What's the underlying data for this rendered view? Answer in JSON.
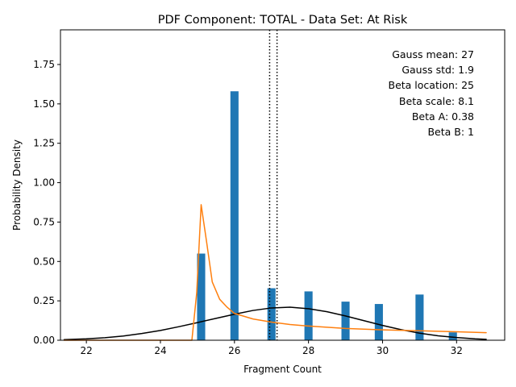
{
  "chart_data": {
    "type": "bar",
    "title": "PDF Component: TOTAL - Data Set: At Risk",
    "xlabel": "Fragment Count",
    "ylabel": "Probability Density",
    "xlim": [
      21.3,
      33.3
    ],
    "ylim": [
      0,
      1.97
    ],
    "xticks": [
      22,
      24,
      26,
      28,
      30,
      32
    ],
    "yticks": [
      0.0,
      0.25,
      0.5,
      0.75,
      1.0,
      1.25,
      1.5,
      1.75
    ],
    "xtick_labels": [
      "22",
      "24",
      "26",
      "28",
      "30",
      "32"
    ],
    "ytick_labels": [
      "0.00",
      "0.25",
      "0.50",
      "0.75",
      "1.00",
      "1.25",
      "1.50",
      "1.75"
    ],
    "grid": false,
    "bar_color": "#1f77b4",
    "bar_width": 0.22,
    "bars": [
      {
        "x": 25.1,
        "y": 0.55
      },
      {
        "x": 26.0,
        "y": 1.58
      },
      {
        "x": 27.0,
        "y": 0.33
      },
      {
        "x": 28.0,
        "y": 0.31
      },
      {
        "x": 29.0,
        "y": 0.245
      },
      {
        "x": 29.9,
        "y": 0.23
      },
      {
        "x": 31.0,
        "y": 0.29
      },
      {
        "x": 31.9,
        "y": 0.05
      }
    ],
    "series": [
      {
        "kind": "gauss-line",
        "color": "#000000",
        "x": [
          21.4,
          22.0,
          22.5,
          23.0,
          23.5,
          24.0,
          24.5,
          25.0,
          25.5,
          26.0,
          26.5,
          27.0,
          27.5,
          28.0,
          28.5,
          29.0,
          29.5,
          30.0,
          30.5,
          31.0,
          31.5,
          32.0,
          32.5,
          32.8
        ],
        "y": [
          0.004,
          0.009,
          0.016,
          0.027,
          0.043,
          0.062,
          0.086,
          0.112,
          0.139,
          0.165,
          0.189,
          0.205,
          0.21,
          0.2,
          0.181,
          0.154,
          0.124,
          0.094,
          0.067,
          0.045,
          0.028,
          0.017,
          0.009,
          0.006
        ]
      },
      {
        "kind": "beta-line",
        "color": "#ff7f0e",
        "x": [
          21.4,
          24.85,
          24.98,
          25.1,
          25.25,
          25.4,
          25.6,
          25.8,
          26.0,
          26.5,
          27.0,
          27.5,
          28.0,
          29.0,
          30.0,
          31.0,
          32.0,
          32.8
        ],
        "y": [
          0.0,
          0.0,
          0.3,
          0.86,
          0.62,
          0.37,
          0.26,
          0.21,
          0.17,
          0.135,
          0.115,
          0.1,
          0.09,
          0.075,
          0.066,
          0.06,
          0.054,
          0.048
        ]
      }
    ],
    "vlines": [
      {
        "x": 26.95,
        "style": "dotted",
        "color": "#000000"
      },
      {
        "x": 27.15,
        "style": "dotted",
        "color": "#000000"
      }
    ],
    "annotations": [
      "Gauss mean: 27",
      "Gauss std: 1.9",
      "Beta location: 25",
      "Beta scale: 8.1",
      "Beta A: 0.38",
      "Beta B: 1"
    ]
  }
}
